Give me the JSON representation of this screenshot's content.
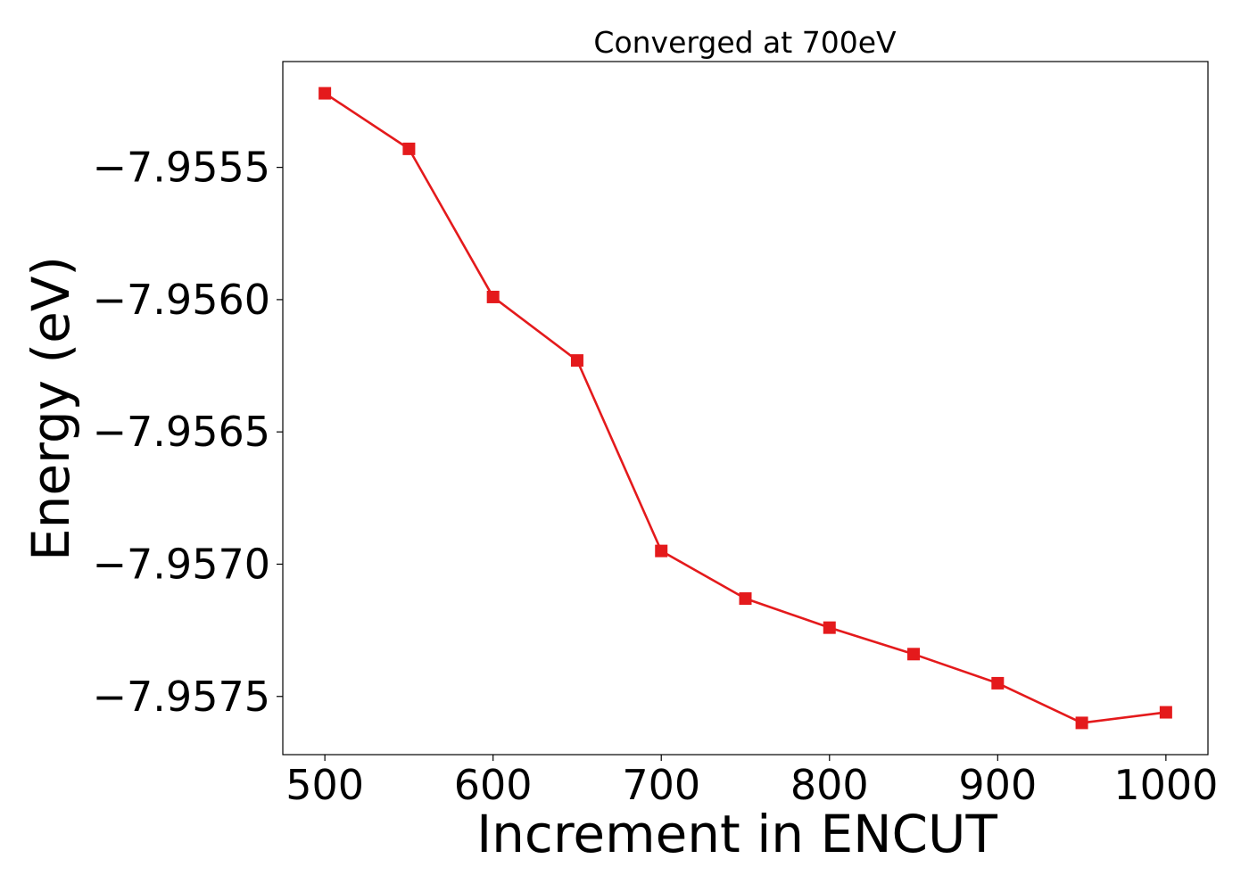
{
  "chart_data": {
    "type": "line",
    "title": "Converged at 700eV",
    "xlabel": "Increment in ENCUT",
    "ylabel": "Energy (eV)",
    "xlim": [
      475,
      1025
    ],
    "ylim": [
      -7.95772,
      -7.9551
    ],
    "x_ticks": [
      500,
      600,
      700,
      800,
      900,
      1000
    ],
    "x_tick_labels": [
      "500",
      "600",
      "700",
      "800",
      "900",
      "1000"
    ],
    "y_ticks": [
      -7.9555,
      -7.956,
      -7.9565,
      -7.957,
      -7.9575
    ],
    "y_tick_labels": [
      "−7.9555",
      "−7.9560",
      "−7.9565",
      "−7.9570",
      "−7.9575"
    ],
    "grid": false,
    "legend": "none",
    "series": [
      {
        "color": "#e41a1c",
        "marker": "square",
        "x": [
          500,
          550,
          600,
          650,
          700,
          750,
          800,
          850,
          900,
          950,
          1000
        ],
        "y": [
          -7.95522,
          -7.95543,
          -7.95599,
          -7.95623,
          -7.95695,
          -7.95713,
          -7.95724,
          -7.95734,
          -7.95745,
          -7.9576,
          -7.95756
        ]
      }
    ]
  }
}
